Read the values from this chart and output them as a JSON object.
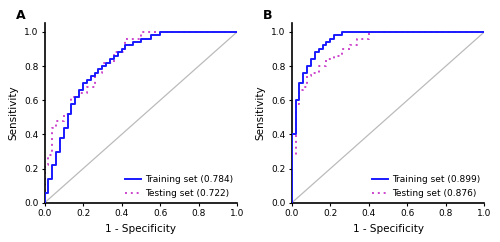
{
  "panel_A": {
    "label": "A",
    "training_label": "Training set (0.784)",
    "testing_label": "Testing set (0.722)",
    "training_color": "#1a1aff",
    "testing_color": "#cc44cc",
    "training_fpr": [
      0.0,
      0.0,
      0.02,
      0.02,
      0.04,
      0.04,
      0.06,
      0.06,
      0.08,
      0.08,
      0.1,
      0.1,
      0.12,
      0.12,
      0.14,
      0.14,
      0.16,
      0.16,
      0.18,
      0.18,
      0.2,
      0.2,
      0.22,
      0.22,
      0.24,
      0.24,
      0.26,
      0.26,
      0.28,
      0.28,
      0.3,
      0.3,
      0.32,
      0.32,
      0.34,
      0.34,
      0.36,
      0.36,
      0.38,
      0.38,
      0.4,
      0.4,
      0.42,
      0.42,
      0.46,
      0.46,
      0.5,
      0.5,
      0.55,
      0.55,
      0.6,
      0.6,
      1.0
    ],
    "training_tpr": [
      0.0,
      0.06,
      0.06,
      0.14,
      0.14,
      0.22,
      0.22,
      0.3,
      0.3,
      0.38,
      0.38,
      0.44,
      0.44,
      0.52,
      0.52,
      0.58,
      0.58,
      0.62,
      0.62,
      0.66,
      0.66,
      0.7,
      0.7,
      0.72,
      0.72,
      0.74,
      0.74,
      0.76,
      0.76,
      0.78,
      0.78,
      0.8,
      0.8,
      0.82,
      0.82,
      0.84,
      0.84,
      0.86,
      0.86,
      0.88,
      0.88,
      0.9,
      0.9,
      0.92,
      0.92,
      0.94,
      0.94,
      0.96,
      0.96,
      0.98,
      0.98,
      1.0,
      1.0
    ],
    "testing_fpr": [
      0.0,
      0.0,
      0.02,
      0.02,
      0.04,
      0.04,
      0.06,
      0.06,
      0.1,
      0.1,
      0.14,
      0.14,
      0.18,
      0.18,
      0.22,
      0.22,
      0.26,
      0.26,
      0.3,
      0.3,
      0.36,
      0.36,
      0.42,
      0.42,
      0.5,
      0.5,
      0.58,
      0.58,
      1.0
    ],
    "testing_tpr": [
      0.0,
      0.22,
      0.22,
      0.28,
      0.28,
      0.44,
      0.44,
      0.48,
      0.48,
      0.52,
      0.52,
      0.62,
      0.62,
      0.64,
      0.64,
      0.68,
      0.68,
      0.76,
      0.76,
      0.82,
      0.82,
      0.88,
      0.88,
      0.96,
      0.96,
      1.0,
      1.0,
      1.0,
      1.0
    ]
  },
  "panel_B": {
    "label": "B",
    "training_label": "Training set (0.899)",
    "testing_label": "Testing set (0.876)",
    "training_color": "#1a1aff",
    "testing_color": "#cc44cc",
    "training_fpr": [
      0.0,
      0.0,
      0.02,
      0.02,
      0.04,
      0.04,
      0.06,
      0.06,
      0.08,
      0.08,
      0.1,
      0.1,
      0.12,
      0.12,
      0.14,
      0.14,
      0.16,
      0.16,
      0.18,
      0.18,
      0.2,
      0.2,
      0.22,
      0.22,
      0.26,
      0.26,
      0.3,
      0.3,
      0.36,
      0.36,
      0.4,
      0.4,
      0.44,
      0.44,
      0.6,
      0.6,
      1.0
    ],
    "training_tpr": [
      0.0,
      0.4,
      0.4,
      0.6,
      0.6,
      0.7,
      0.7,
      0.76,
      0.76,
      0.8,
      0.8,
      0.84,
      0.84,
      0.88,
      0.88,
      0.9,
      0.9,
      0.92,
      0.92,
      0.94,
      0.94,
      0.96,
      0.96,
      0.98,
      0.98,
      1.0,
      1.0,
      1.0,
      1.0,
      1.0,
      1.0,
      1.0,
      1.0,
      1.0,
      1.0,
      1.0,
      1.0
    ],
    "testing_fpr": [
      0.0,
      0.0,
      0.02,
      0.02,
      0.04,
      0.04,
      0.06,
      0.06,
      0.08,
      0.08,
      0.1,
      0.1,
      0.14,
      0.14,
      0.18,
      0.18,
      0.22,
      0.22,
      0.26,
      0.26,
      0.3,
      0.3,
      0.34,
      0.34,
      0.4,
      0.4,
      0.44,
      0.44,
      0.6,
      0.6,
      1.0
    ],
    "testing_tpr": [
      0.0,
      0.28,
      0.28,
      0.58,
      0.58,
      0.66,
      0.66,
      0.68,
      0.68,
      0.74,
      0.74,
      0.76,
      0.76,
      0.8,
      0.8,
      0.84,
      0.84,
      0.86,
      0.86,
      0.9,
      0.9,
      0.92,
      0.92,
      0.96,
      0.96,
      1.0,
      1.0,
      1.0,
      1.0,
      1.0,
      1.0
    ]
  },
  "ref_color": "#BBBBBB",
  "xlabel": "1 - Specificity",
  "ylabel": "Sensitivity",
  "xlim": [
    0.0,
    1.0
  ],
  "ylim": [
    0.0,
    1.05
  ],
  "xticks": [
    0.0,
    0.2,
    0.4,
    0.6,
    0.8,
    1.0
  ],
  "yticks": [
    0.0,
    0.2,
    0.4,
    0.6,
    0.8,
    1.0
  ],
  "tick_labels_x": [
    "0.0",
    "0.2",
    "0.4",
    "0.6",
    "0.8",
    "1.0"
  ],
  "tick_labels_y": [
    "0.0",
    "0.2",
    "0.4",
    "0.6",
    "0.8",
    "1.0"
  ],
  "legend_fontsize": 6.5,
  "axis_fontsize": 7.5,
  "tick_fontsize": 6.5,
  "label_fontsize": 9,
  "line_width": 1.4,
  "dot_size": 1.5
}
